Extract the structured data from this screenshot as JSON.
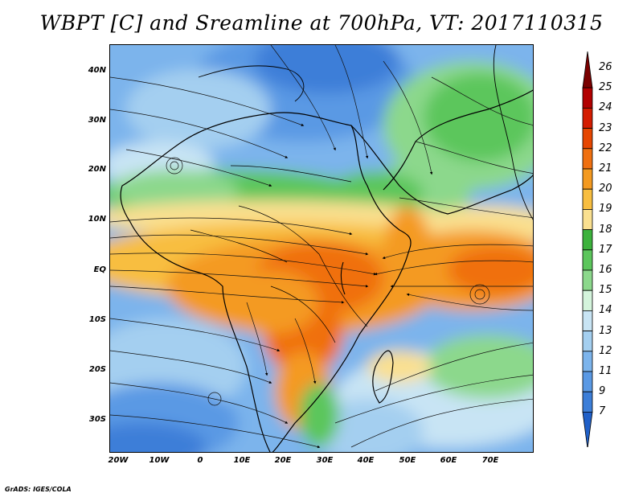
{
  "title": "WBPT [C] and Sreamline at 700hPa, VT: 2017110315",
  "credit": "GrADS: IGES/COLA",
  "map": {
    "lat_labels": [
      "40N",
      "30N",
      "20N",
      "10N",
      "EQ",
      "10S",
      "20S",
      "30S"
    ],
    "lon_labels": [
      "20W",
      "10W",
      "0",
      "10E",
      "20E",
      "30E",
      "40E",
      "50E",
      "60E",
      "70E"
    ]
  },
  "colorbar": {
    "labels": [
      "26",
      "25",
      "24",
      "23",
      "22",
      "21",
      "20",
      "19",
      "18",
      "17",
      "16",
      "15",
      "14",
      "13",
      "12",
      "11",
      "9",
      "7"
    ],
    "colors": [
      "#7a0000",
      "#b20000",
      "#d41c00",
      "#e64600",
      "#f07010",
      "#f49a20",
      "#f8be40",
      "#fae090",
      "#3cb23c",
      "#5cc65c",
      "#8cd88c",
      "#d4f4dc",
      "#c8e4f4",
      "#a4cff0",
      "#7cb4ec",
      "#5a99e4",
      "#3c7ed8",
      "#2060c8"
    ]
  }
}
